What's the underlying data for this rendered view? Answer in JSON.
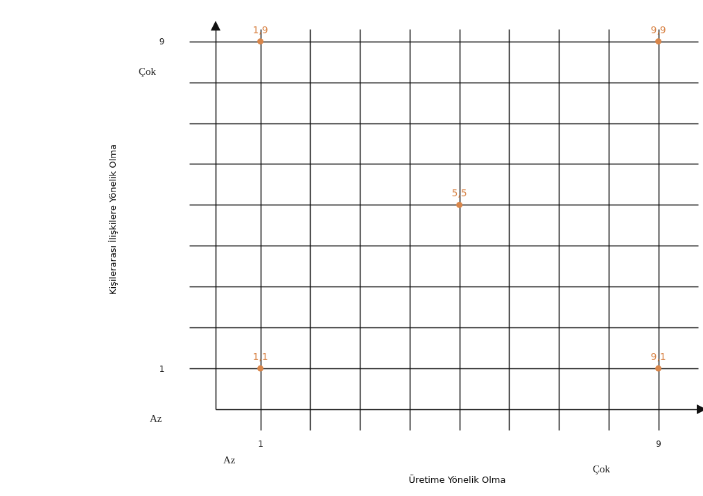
{
  "chart_data": {
    "type": "scatter",
    "marker": "circle",
    "x": [
      1,
      1,
      5,
      9,
      9
    ],
    "values": [
      1,
      9,
      5,
      1,
      9
    ],
    "xlabel": "Üretime Yönelik Olma",
    "ylabel": "Kişilerarası İlişkilere Yönelik Olma",
    "color": "#d9864a",
    "xlim": [
      0.1,
      9.8
    ],
    "ylim": [
      0,
      9.3
    ],
    "xticks": [
      1,
      {
        "value": 2,
        "label": null
      },
      {
        "value": 3,
        "label": null
      },
      {
        "value": 4,
        "label": null
      },
      {
        "value": 5,
        "label": null
      },
      {
        "value": 6,
        "label": null
      },
      {
        "value": 7,
        "label": null
      },
      {
        "value": 8,
        "label": null
      },
      9
    ],
    "yticks": [
      1,
      {
        "value": 2,
        "label": null
      },
      {
        "value": 3,
        "label": null
      },
      {
        "value": 4,
        "label": null
      },
      {
        "value": 5,
        "label": null
      },
      {
        "value": 6,
        "label": null
      },
      {
        "value": 7,
        "label": null
      },
      {
        "value": 8,
        "label": null
      },
      9
    ],
    "grid": true,
    "annotations": [
      "Az",
      "Çok",
      "Az",
      "Çok",
      {
        "text": "1,1",
        "x": 1,
        "y": 1
      },
      {
        "text": "1,9",
        "x": 1,
        "y": 9
      },
      {
        "text": "5,5",
        "x": 5,
        "y": 5
      },
      {
        "text": "9,1",
        "x": 9,
        "y": 1
      },
      {
        "text": "9,9",
        "x": 9,
        "y": 9
      }
    ]
  }
}
